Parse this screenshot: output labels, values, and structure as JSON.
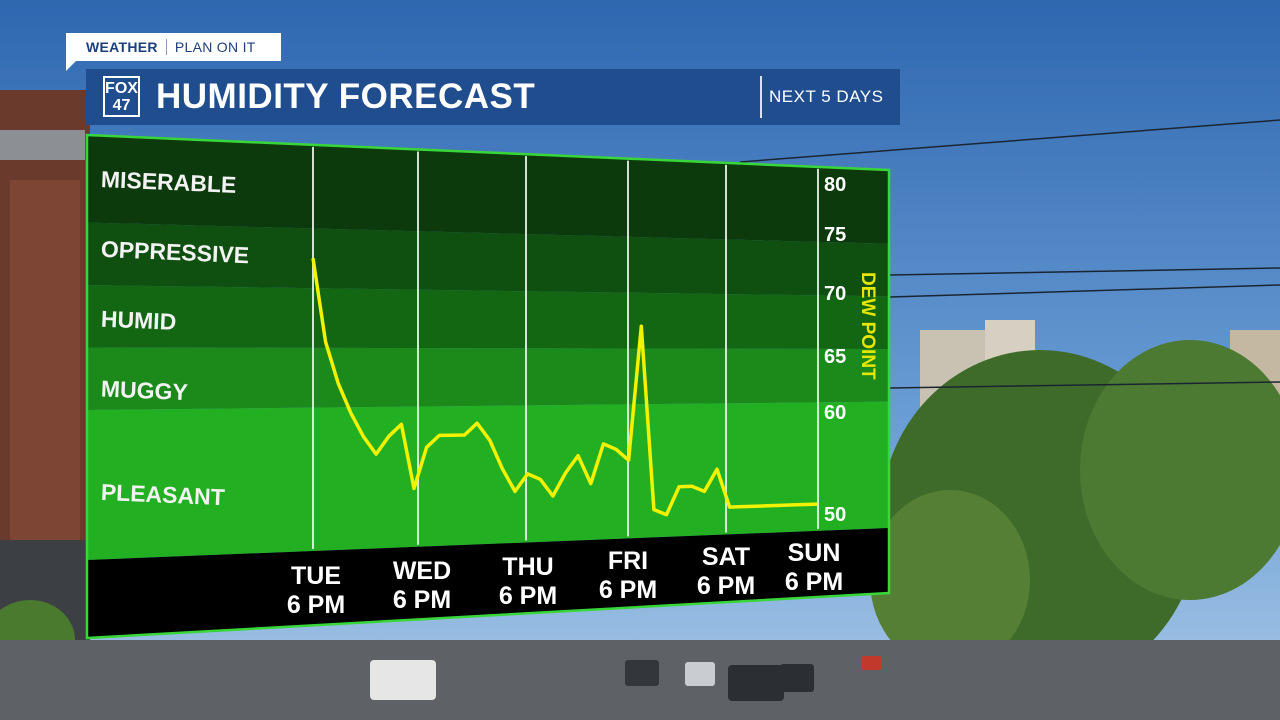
{
  "header": {
    "brand_tag": "WEATHER",
    "tagline": "PLAN ON IT",
    "logo_text": [
      "FOX",
      "47"
    ],
    "title": "HUMIDITY FORECAST",
    "subtitle": "NEXT 5 DAYS"
  },
  "colors": {
    "header_blue": "#1f4d8e",
    "line": "#f2f200",
    "band_border": "#39d639",
    "label_bar": "#000000"
  },
  "chart_data": {
    "type": "line",
    "y_label": "DEW POINT",
    "y_ticks": [
      50,
      60,
      65,
      70,
      75,
      80
    ],
    "ylim": [
      48,
      82
    ],
    "bands": [
      {
        "name": "MISERABLE",
        "from": 75,
        "to": 82
      },
      {
        "name": "OPPRESSIVE",
        "from": 70,
        "to": 75
      },
      {
        "name": "HUMID",
        "from": 65,
        "to": 70
      },
      {
        "name": "MUGGY",
        "from": 60,
        "to": 65
      },
      {
        "name": "PLEASANT",
        "from": 48,
        "to": 60
      }
    ],
    "x_ticks": [
      {
        "day": "TUE",
        "time": "6 PM"
      },
      {
        "day": "WED",
        "time": "6 PM"
      },
      {
        "day": "THU",
        "time": "6 PM"
      },
      {
        "day": "FRI",
        "time": "6 PM"
      },
      {
        "day": "SAT",
        "time": "6 PM"
      },
      {
        "day": "SUN",
        "time": "6 PM"
      }
    ],
    "x_range_hours": [
      0,
      120
    ],
    "series": [
      {
        "x": [
          0,
          3,
          6,
          9,
          12,
          15,
          18,
          21,
          24,
          27,
          30,
          33,
          36,
          39,
          42,
          45,
          48,
          51,
          54,
          57,
          60,
          63,
          66,
          69,
          72,
          75,
          78,
          81,
          84,
          87,
          90,
          93,
          96,
          99,
          102,
          105,
          108,
          111,
          114,
          117,
          120
        ],
        "y": [
          72.5,
          65.5,
          62,
          59.5,
          57.5,
          56,
          57.5,
          58.5,
          53,
          56.5,
          57.5,
          57.5,
          57.5,
          58.5,
          57,
          54.5,
          52.5,
          54,
          53.5,
          52,
          54,
          55.5,
          53,
          56.5,
          56,
          55,
          67,
          50.5,
          50,
          52.5,
          52.5,
          52,
          54,
          50.5,
          50.5,
          50.5,
          50.5,
          50.5,
          50.5,
          50.5,
          50.5
        ]
      }
    ]
  }
}
